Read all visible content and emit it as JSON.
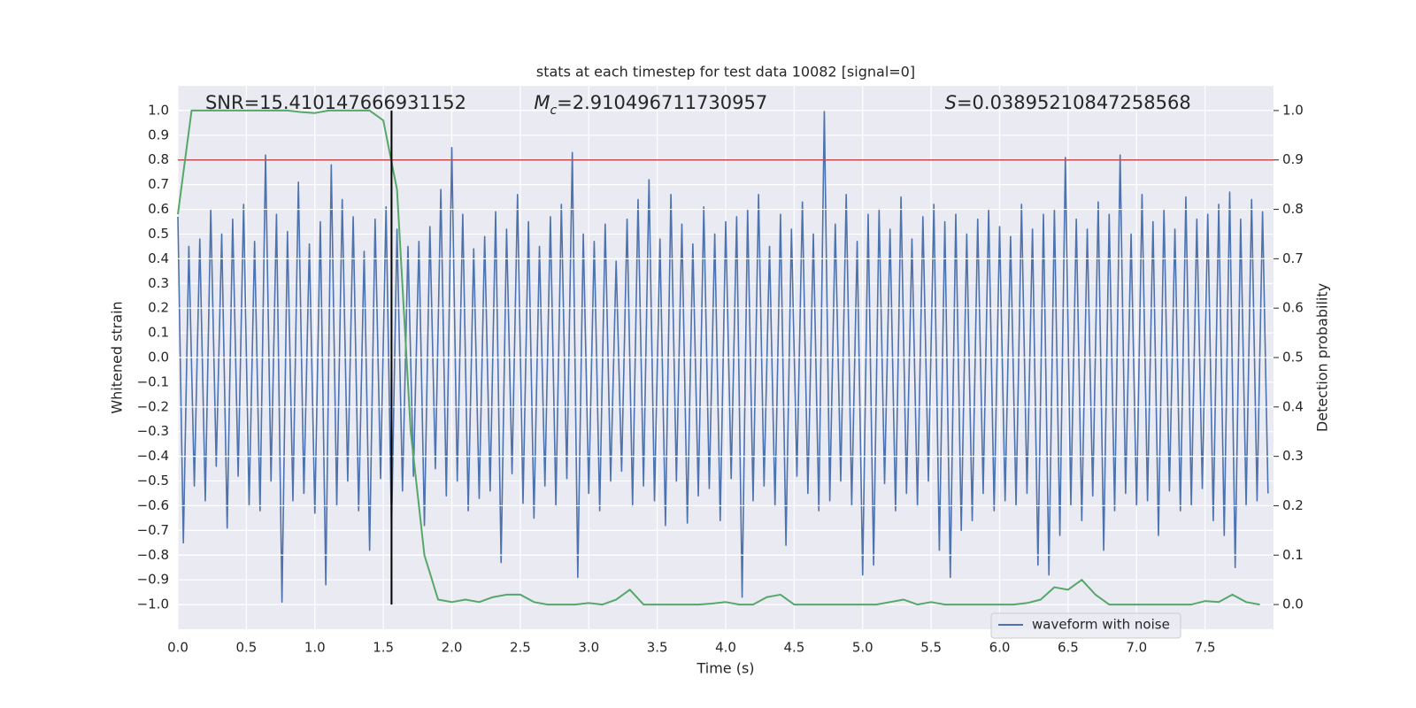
{
  "chart_data": {
    "type": "line",
    "title": "stats at each timestep for test data 10082 [signal=0]",
    "xlabel": "Time (s)",
    "ylabel": "Whitened strain",
    "y2label": "Detection probability",
    "xlim": [
      0,
      8
    ],
    "ylim": [
      -1.1,
      1.1
    ],
    "y2lim": [
      -0.05,
      1.05
    ],
    "xticks": [
      {
        "value": 0,
        "label": "0.0"
      },
      0.5,
      {
        "value": 1,
        "label": "1.0"
      },
      1.5,
      {
        "value": 2,
        "label": "2.0"
      },
      2.5,
      {
        "value": 3,
        "label": "3.0"
      },
      3.5,
      {
        "value": 4,
        "label": "4.0"
      },
      4.5,
      {
        "value": 5,
        "label": "5.0"
      },
      5.5,
      {
        "value": 6,
        "label": "6.0"
      },
      6.5,
      {
        "value": 7,
        "label": "7.0"
      },
      7.5
    ],
    "yticks": [
      {
        "value": -1,
        "label": "−1.0"
      },
      {
        "value": -0.9,
        "label": "−0.9"
      },
      {
        "value": -0.8,
        "label": "−0.8"
      },
      {
        "value": -0.7,
        "label": "−0.7"
      },
      {
        "value": -0.6,
        "label": "−0.6"
      },
      {
        "value": -0.5,
        "label": "−0.5"
      },
      {
        "value": -0.4,
        "label": "−0.4"
      },
      {
        "value": -0.3,
        "label": "−0.3"
      },
      {
        "value": -0.2,
        "label": "−0.2"
      },
      {
        "value": -0.1,
        "label": "−0.1"
      },
      {
        "value": 0,
        "label": "0.0"
      },
      0.1,
      0.2,
      0.3,
      0.4,
      0.5,
      0.6,
      0.7,
      0.8,
      0.9,
      {
        "value": 1,
        "label": "1.0"
      }
    ],
    "y2ticks": [
      {
        "value": 0,
        "label": "0.0"
      },
      0.1,
      0.2,
      0.3,
      0.4,
      0.5,
      0.6,
      0.7,
      0.8,
      0.9,
      {
        "value": 1,
        "label": "1.0"
      }
    ],
    "grid": true,
    "legend": "lower right",
    "series": [
      {
        "name": "waveform with noise",
        "color": "#4c72b0",
        "x": [
          0,
          0.04,
          0.08,
          0.12,
          0.16,
          0.2,
          0.24,
          0.28,
          0.32,
          0.36,
          0.4,
          0.44,
          0.48,
          0.52,
          0.56,
          0.6,
          0.64,
          0.68,
          0.72,
          0.76,
          0.8,
          0.84,
          0.88,
          0.92,
          0.96,
          1,
          1.04,
          1.08,
          1.12,
          1.16,
          1.2,
          1.24,
          1.28,
          1.32,
          1.36,
          1.4,
          1.44,
          1.48,
          1.52,
          1.56,
          1.6,
          1.64,
          1.68,
          1.72,
          1.76,
          1.8,
          1.84,
          1.88,
          1.92,
          1.96,
          2,
          2.04,
          2.08,
          2.12,
          2.16,
          2.2,
          2.24,
          2.28,
          2.32,
          2.36,
          2.4,
          2.44,
          2.48,
          2.52,
          2.56,
          2.6,
          2.64,
          2.68,
          2.72,
          2.76,
          2.8,
          2.84,
          2.88,
          2.92,
          2.96,
          3,
          3.04,
          3.08,
          3.12,
          3.16,
          3.2,
          3.24,
          3.28,
          3.32,
          3.36,
          3.4,
          3.44,
          3.48,
          3.52,
          3.56,
          3.6,
          3.64,
          3.68,
          3.72,
          3.76,
          3.8,
          3.84,
          3.88,
          3.92,
          3.96,
          4,
          4.04,
          4.08,
          4.12,
          4.16,
          4.2,
          4.24,
          4.28,
          4.32,
          4.36,
          4.4,
          4.44,
          4.48,
          4.52,
          4.56,
          4.6,
          4.64,
          4.68,
          4.72,
          4.76,
          4.8,
          4.84,
          4.88,
          4.92,
          4.96,
          5,
          5.04,
          5.08,
          5.12,
          5.16,
          5.2,
          5.24,
          5.28,
          5.32,
          5.36,
          5.4,
          5.44,
          5.48,
          5.52,
          5.56,
          5.6,
          5.64,
          5.68,
          5.72,
          5.76,
          5.8,
          5.84,
          5.88,
          5.92,
          5.96,
          6,
          6.04,
          6.08,
          6.12,
          6.16,
          6.2,
          6.24,
          6.28,
          6.32,
          6.36,
          6.4,
          6.44,
          6.48,
          6.52,
          6.56,
          6.6,
          6.64,
          6.68,
          6.72,
          6.76,
          6.8,
          6.84,
          6.88,
          6.92,
          6.96,
          7,
          7.04,
          7.08,
          7.12,
          7.16,
          7.2,
          7.24,
          7.28,
          7.32,
          7.36,
          7.4,
          7.44,
          7.48,
          7.52,
          7.56,
          7.6,
          7.64,
          7.68,
          7.72,
          7.76,
          7.8,
          7.84,
          7.88,
          7.92,
          7.96
        ],
        "values": [
          0.57,
          -0.75,
          0.45,
          -0.52,
          0.48,
          -0.58,
          0.6,
          -0.44,
          0.5,
          -0.69,
          0.56,
          -0.48,
          0.62,
          -0.6,
          0.47,
          -0.62,
          0.82,
          -0.5,
          0.58,
          -0.99,
          0.51,
          -0.58,
          0.71,
          -0.55,
          0.46,
          -0.63,
          0.55,
          -0.92,
          0.78,
          -0.6,
          0.64,
          -0.5,
          0.57,
          -0.62,
          0.43,
          -0.78,
          0.56,
          -0.49,
          0.61,
          -0.7,
          0.52,
          -0.54,
          0.45,
          -0.48,
          0.47,
          -0.68,
          0.53,
          -0.45,
          0.68,
          -0.56,
          0.85,
          -0.5,
          0.58,
          -0.62,
          0.44,
          -0.57,
          0.49,
          -0.54,
          0.59,
          -0.83,
          0.52,
          -0.47,
          0.66,
          -0.59,
          0.55,
          -0.65,
          0.45,
          -0.52,
          0.57,
          -0.6,
          0.62,
          -0.49,
          0.83,
          -0.89,
          0.5,
          -0.55,
          0.47,
          -0.62,
          0.54,
          -0.5,
          0.39,
          -0.46,
          0.56,
          -0.6,
          0.64,
          -0.52,
          0.72,
          -0.58,
          0.48,
          -0.68,
          0.66,
          -0.5,
          0.54,
          -0.67,
          0.46,
          -0.56,
          0.61,
          -0.53,
          0.5,
          -0.66,
          0.55,
          -0.49,
          0.57,
          -0.97,
          0.6,
          -0.58,
          0.66,
          -0.52,
          0.45,
          -0.6,
          0.58,
          -0.76,
          0.52,
          -0.48,
          0.63,
          -0.55,
          0.5,
          -0.62,
          1.0,
          -0.58,
          0.54,
          -0.5,
          0.66,
          -0.6,
          0.47,
          -0.88,
          0.58,
          -0.84,
          0.6,
          -0.51,
          0.52,
          -0.62,
          0.65,
          -0.55,
          0.48,
          -0.6,
          0.57,
          -0.5,
          0.62,
          -0.78,
          0.55,
          -0.89,
          0.58,
          -0.7,
          0.5,
          -0.66,
          0.56,
          -0.55,
          0.6,
          -0.62,
          0.53,
          -0.58,
          0.49,
          -0.6,
          0.62,
          -0.55,
          0.52,
          -0.84,
          0.58,
          -0.88,
          0.6,
          -0.72,
          0.81,
          -0.6,
          0.56,
          -0.66,
          0.52,
          -0.56,
          0.63,
          -0.78,
          0.58,
          -0.62,
          0.82,
          -0.55,
          0.5,
          -0.6,
          0.66,
          -0.58,
          0.55,
          -0.72,
          0.6,
          -0.54,
          0.52,
          -0.62,
          0.65,
          -0.6,
          0.56,
          -0.53,
          0.58,
          -0.66,
          0.62,
          -0.72,
          0.67,
          -0.85,
          0.56,
          -0.6,
          0.64,
          -0.58,
          0.59,
          -0.55
        ]
      },
      {
        "color": "#55a868",
        "axis": "y2",
        "x": [
          0,
          0.1,
          0.2,
          0.3,
          0.4,
          0.5,
          0.6,
          0.7,
          0.8,
          0.9,
          1,
          1.1,
          1.2,
          1.3,
          1.4,
          1.5,
          1.6,
          1.7,
          1.8,
          1.9,
          2,
          2.1,
          2.2,
          2.3,
          2.4,
          2.5,
          2.6,
          2.7,
          2.8,
          2.9,
          3,
          3.1,
          3.2,
          3.3,
          3.4,
          3.5,
          3.6,
          3.7,
          3.8,
          3.9,
          4,
          4.1,
          4.2,
          4.3,
          4.4,
          4.5,
          4.6,
          4.7,
          4.8,
          4.9,
          5,
          5.1,
          5.2,
          5.3,
          5.4,
          5.5,
          5.6,
          5.7,
          5.8,
          5.9,
          6,
          6.1,
          6.2,
          6.3,
          6.4,
          6.5,
          6.6,
          6.7,
          6.8,
          6.9,
          7,
          7.1,
          7.2,
          7.3,
          7.4,
          7.5,
          7.6,
          7.7,
          7.8,
          7.9
        ],
        "values": [
          0.79,
          1.0,
          1.0,
          1.0,
          1.0,
          1.0,
          1.0,
          1.0,
          1.0,
          0.997,
          0.995,
          1.0,
          1.0,
          1.0,
          1.0,
          0.98,
          0.84,
          0.35,
          0.1,
          0.01,
          0.005,
          0.01,
          0.005,
          0.015,
          0.02,
          0.02,
          0.005,
          0.0,
          0.0,
          0.0,
          0.003,
          0.0,
          0.01,
          0.03,
          0.0,
          0.0,
          0.0,
          0.0,
          0.0,
          0.002,
          0.005,
          0.0,
          0.0,
          0.015,
          0.02,
          0.0,
          0.0,
          0.0,
          0.0,
          0.0,
          0.0,
          0.0,
          0.005,
          0.01,
          0.0,
          0.005,
          0.0,
          0.0,
          0.0,
          0.0,
          0.0,
          0.0,
          0.003,
          0.01,
          0.035,
          0.03,
          0.05,
          0.02,
          0.0,
          0.0,
          0.0,
          0.0,
          0.0,
          0.0,
          0.0,
          0.007,
          0.005,
          0.02,
          0.005,
          0.0
        ]
      }
    ],
    "hlines": [
      {
        "value": 0.9,
        "axis": "y2",
        "color": "#c44e52"
      }
    ],
    "vlines": [
      {
        "value": 1.56,
        "color": "#000000"
      }
    ],
    "annotations": [
      {
        "text": "SNR=15.410147666931152"
      },
      {
        "symbol": "M",
        "subscript": "c",
        "text": "=2.910496711730957"
      },
      {
        "symbol": "S",
        "text": "=0.03895210847258568"
      }
    ]
  }
}
